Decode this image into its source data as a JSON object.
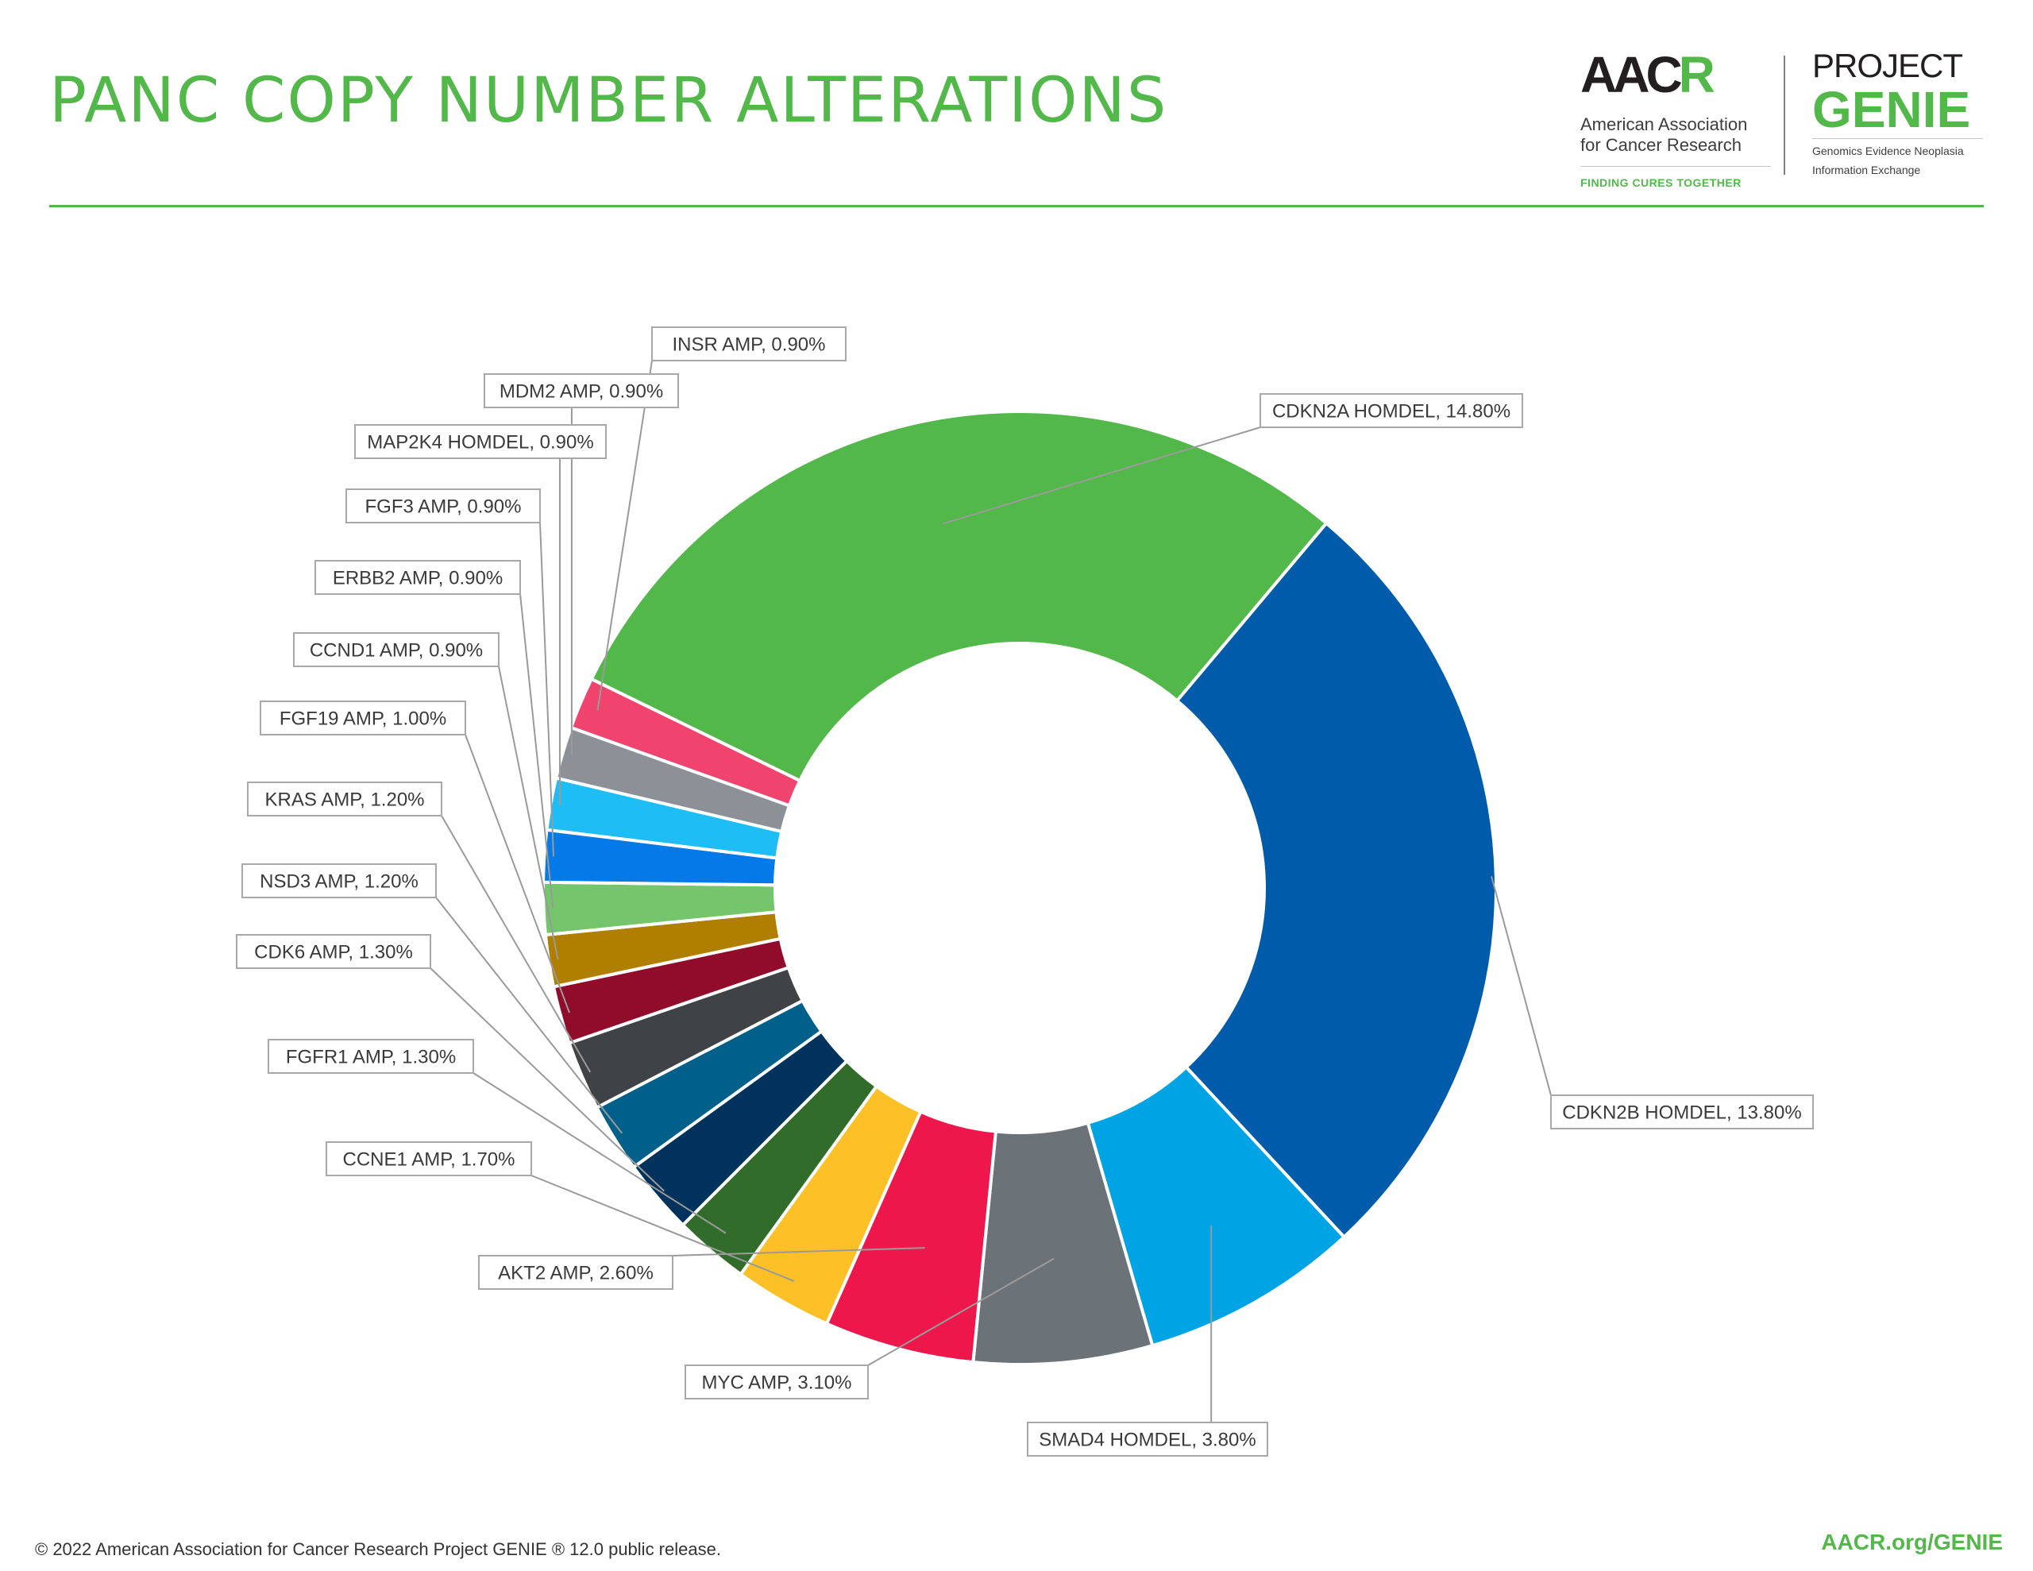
{
  "header": {
    "title": "PANC COPY NUMBER ALTERATIONS"
  },
  "logos": {
    "aacr_wordmark": "AACR",
    "aacr_org": "American Association for Cancer Research",
    "aacr_tagline": "FINDING CURES TOGETHER",
    "genie_project": "PROJECT",
    "genie_name": "GENIE",
    "genie_subtitle_1": "Genomics Evidence Neoplasia",
    "genie_subtitle_2": "Information Exchange"
  },
  "footer": {
    "copyright": "© 2022 American Association for Cancer Research Project GENIE ® 12.0 public release.",
    "link": "AACR.org/GENIE"
  },
  "chart_data": {
    "type": "pie",
    "title": "PANC COPY NUMBER ALTERATIONS",
    "donut": true,
    "labels_with_leader_lines": true,
    "unit": "%",
    "slices": [
      {
        "label": "CDKN2A HOMDEL, 14.80%",
        "value": 14.8,
        "color": "#53b84a"
      },
      {
        "label": "CDKN2B HOMDEL, 13.80%",
        "value": 13.8,
        "color": "#005cab"
      },
      {
        "label": "SMAD4 HOMDEL, 3.80%",
        "value": 3.8,
        "color": "#00a3e3"
      },
      {
        "label": "MYC AMP, 3.10%",
        "value": 3.1,
        "color": "#6c7378"
      },
      {
        "label": "AKT2 AMP, 2.60%",
        "value": 2.6,
        "color": "#ed174c"
      },
      {
        "label": "CCNE1 AMP, 1.70%",
        "value": 1.7,
        "color": "#fdc127"
      },
      {
        "label": "FGFR1 AMP, 1.30%",
        "value": 1.3,
        "color": "#316c2b"
      },
      {
        "label": "CDK6 AMP, 1.30%",
        "value": 1.3,
        "color": "#00325e"
      },
      {
        "label": "NSD3 AMP, 1.20%",
        "value": 1.2,
        "color": "#00608a"
      },
      {
        "label": "KRAS AMP, 1.20%",
        "value": 1.2,
        "color": "#404346"
      },
      {
        "label": "FGF19 AMP, 1.00%",
        "value": 1.0,
        "color": "#900c2a"
      },
      {
        "label": "CCND1 AMP, 0.90%",
        "value": 0.9,
        "color": "#b07f00"
      },
      {
        "label": "ERBB2 AMP, 0.90%",
        "value": 0.9,
        "color": "#74c56c"
      },
      {
        "label": "FGF3 AMP, 0.90%",
        "value": 0.9,
        "color": "#0479e8"
      },
      {
        "label": "MAP2K4 HOMDEL, 0.90%",
        "value": 0.9,
        "color": "#1ebdf6"
      },
      {
        "label": "MDM2 AMP, 0.90%",
        "value": 0.9,
        "color": "#8b9196"
      },
      {
        "label": "INSR AMP, 0.90%",
        "value": 0.9,
        "color": "#f0436d"
      }
    ]
  }
}
